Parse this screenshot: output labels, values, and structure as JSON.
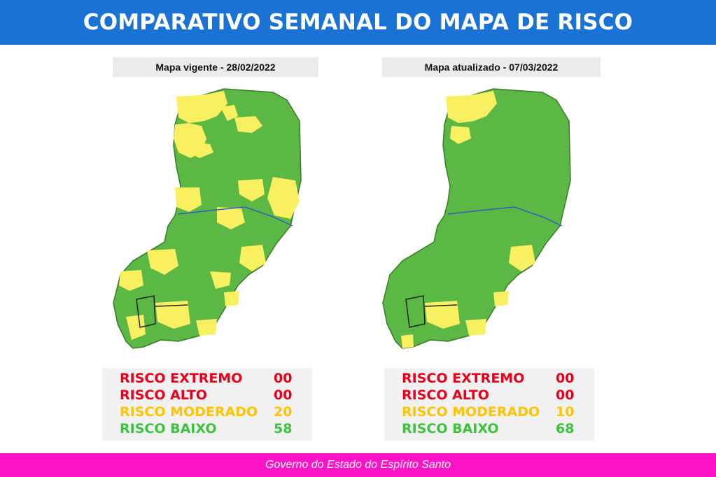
{
  "header": {
    "title": "COMPARATIVO SEMANAL DO MAPA DE RISCO"
  },
  "colors": {
    "header_bg": "#1a73d4",
    "footer_bg": "#ff14c8",
    "extreme": "#e8001c",
    "high": "#e8001c",
    "moderate": "#ffc400",
    "low": "#3cc23c",
    "map_green": "#5cb844",
    "map_yellow": "#f8f060"
  },
  "maps": [
    {
      "caption": "Mapa vigente - 28/02/2022",
      "legend": [
        {
          "label": "RISCO EXTREMO",
          "count": "00"
        },
        {
          "label": "RISCO ALTO",
          "count": "00"
        },
        {
          "label": "RISCO MODERADO",
          "count": "20"
        },
        {
          "label": "RISCO BAIXO",
          "count": "58"
        }
      ]
    },
    {
      "caption": "Mapa atualizado - 07/03/2022",
      "legend": [
        {
          "label": "RISCO EXTREMO",
          "count": "00"
        },
        {
          "label": "RISCO ALTO",
          "count": "00"
        },
        {
          "label": "RISCO MODERADO",
          "count": "10"
        },
        {
          "label": "RISCO BAIXO",
          "count": "68"
        }
      ]
    }
  ],
  "footer": {
    "text": "Governo do Estado do Espírito Santo"
  }
}
